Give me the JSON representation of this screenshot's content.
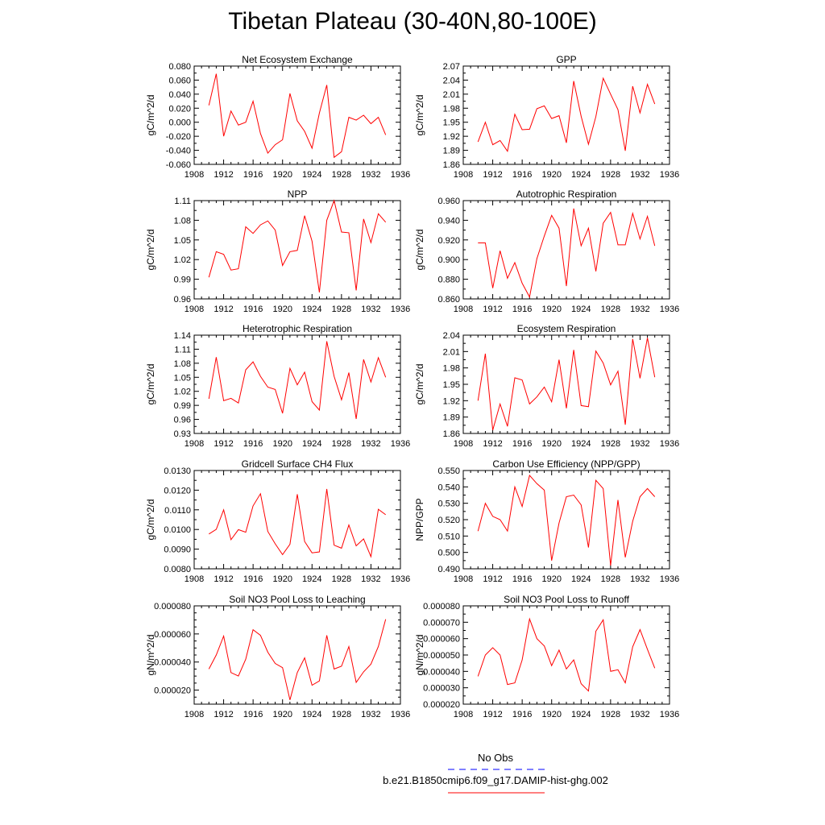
{
  "figure": {
    "title": "Tibetan Plateau (30-40N,80-100E)"
  },
  "legend": {
    "entries": [
      {
        "label": "No Obs",
        "color": "#0000ff",
        "dash": "dashed"
      },
      {
        "label": "b.e21.B1850cmip6.f09_g17.DAMIP-hist-ghg.002",
        "color": "#ff0000",
        "dash": "solid"
      }
    ]
  },
  "chart_data": [
    {
      "type": "line",
      "title": "Net Ecosystem Exchange",
      "ylabel": "gC/m^2/d",
      "xlim": [
        1908,
        1936
      ],
      "xticks": [
        1908,
        1912,
        1916,
        1920,
        1924,
        1928,
        1932,
        1936
      ],
      "ylim": [
        -0.06,
        0.08
      ],
      "yticks": [
        "-0.060",
        "-0.040",
        "-0.020",
        "0.000",
        "0.020",
        "0.040",
        "0.060",
        "0.080"
      ],
      "x": [
        1910,
        1911,
        1912,
        1913,
        1914,
        1915,
        1916,
        1917,
        1918,
        1919,
        1920,
        1921,
        1922,
        1923,
        1924,
        1925,
        1926,
        1927,
        1928,
        1929,
        1930,
        1931,
        1932,
        1933,
        1934
      ],
      "series": [
        {
          "color": "#ff0000",
          "values": [
            0.024,
            0.069,
            -0.02,
            0.016,
            -0.004,
            0.0,
            0.03,
            -0.016,
            -0.044,
            -0.032,
            -0.025,
            0.041,
            0.002,
            -0.013,
            -0.037,
            0.013,
            0.053,
            -0.05,
            -0.042,
            0.007,
            0.003,
            0.01,
            -0.002,
            0.007,
            -0.018
          ]
        }
      ]
    },
    {
      "type": "line",
      "title": "GPP",
      "ylabel": "gC/m^2/d",
      "xlim": [
        1908,
        1936
      ],
      "xticks": [
        1908,
        1912,
        1916,
        1920,
        1924,
        1928,
        1932,
        1936
      ],
      "ylim": [
        1.86,
        2.07
      ],
      "yticks": [
        "1.86",
        "1.89",
        "1.92",
        "1.95",
        "1.98",
        "2.01",
        "2.04",
        "2.07"
      ],
      "x": [
        1910,
        1911,
        1912,
        1913,
        1914,
        1915,
        1916,
        1917,
        1918,
        1919,
        1920,
        1921,
        1922,
        1923,
        1924,
        1925,
        1926,
        1927,
        1928,
        1929,
        1930,
        1931,
        1932,
        1933,
        1934
      ],
      "series": [
        {
          "color": "#ff0000",
          "values": [
            1.908,
            1.95,
            1.902,
            1.911,
            1.888,
            1.967,
            1.934,
            1.935,
            1.979,
            1.985,
            1.958,
            1.964,
            1.906,
            2.038,
            1.963,
            1.903,
            1.962,
            2.044,
            2.01,
            1.977,
            1.889,
            2.027,
            1.97,
            2.031,
            1.989
          ]
        }
      ]
    },
    {
      "type": "line",
      "title": "NPP",
      "ylabel": "gC/m^2/d",
      "xlim": [
        1908,
        1936
      ],
      "xticks": [
        1908,
        1912,
        1916,
        1920,
        1924,
        1928,
        1932,
        1936
      ],
      "ylim": [
        0.96,
        1.11
      ],
      "yticks": [
        "0.96",
        "0.99",
        "1.02",
        "1.05",
        "1.08",
        "1.11"
      ],
      "x": [
        1910,
        1911,
        1912,
        1913,
        1914,
        1915,
        1916,
        1917,
        1918,
        1919,
        1920,
        1921,
        1922,
        1923,
        1924,
        1925,
        1926,
        1927,
        1928,
        1929,
        1930,
        1931,
        1932,
        1933,
        1934
      ],
      "series": [
        {
          "color": "#ff0000",
          "values": [
            0.993,
            1.032,
            1.028,
            1.004,
            1.006,
            1.07,
            1.06,
            1.073,
            1.079,
            1.065,
            1.011,
            1.032,
            1.034,
            1.087,
            1.048,
            0.97,
            1.08,
            1.11,
            1.062,
            1.061,
            0.973,
            1.082,
            1.046,
            1.09,
            1.077
          ]
        }
      ]
    },
    {
      "type": "line",
      "title": "Autotrophic Respiration",
      "ylabel": "gC/m^2/d",
      "xlim": [
        1908,
        1936
      ],
      "xticks": [
        1908,
        1912,
        1916,
        1920,
        1924,
        1928,
        1932,
        1936
      ],
      "ylim": [
        0.86,
        0.96
      ],
      "yticks": [
        "0.860",
        "0.880",
        "0.900",
        "0.920",
        "0.940",
        "0.960"
      ],
      "x": [
        1910,
        1911,
        1912,
        1913,
        1914,
        1915,
        1916,
        1917,
        1918,
        1919,
        1920,
        1921,
        1922,
        1923,
        1924,
        1925,
        1926,
        1927,
        1928,
        1929,
        1930,
        1931,
        1932,
        1933,
        1934
      ],
      "series": [
        {
          "color": "#ff0000",
          "values": [
            0.917,
            0.917,
            0.871,
            0.909,
            0.881,
            0.897,
            0.876,
            0.862,
            0.901,
            0.924,
            0.945,
            0.932,
            0.873,
            0.952,
            0.914,
            0.932,
            0.888,
            0.937,
            0.948,
            0.915,
            0.915,
            0.947,
            0.921,
            0.944,
            0.914
          ]
        }
      ]
    },
    {
      "type": "line",
      "title": "Heterotrophic Respiration",
      "ylabel": "gC/m^2/d",
      "xlim": [
        1908,
        1936
      ],
      "xticks": [
        1908,
        1912,
        1916,
        1920,
        1924,
        1928,
        1932,
        1936
      ],
      "ylim": [
        0.93,
        1.14
      ],
      "yticks": [
        "0.93",
        "0.96",
        "0.99",
        "1.02",
        "1.05",
        "1.08",
        "1.11",
        "1.14"
      ],
      "x": [
        1910,
        1911,
        1912,
        1913,
        1914,
        1915,
        1916,
        1917,
        1918,
        1919,
        1920,
        1921,
        1922,
        1923,
        1924,
        1925,
        1926,
        1927,
        1928,
        1929,
        1930,
        1931,
        1932,
        1933,
        1934
      ],
      "series": [
        {
          "color": "#ff0000",
          "values": [
            1.004,
            1.093,
            1.0,
            1.005,
            0.995,
            1.066,
            1.083,
            1.052,
            1.029,
            1.024,
            0.973,
            1.069,
            1.034,
            1.061,
            0.998,
            0.98,
            1.127,
            1.052,
            1.002,
            1.06,
            0.961,
            1.088,
            1.04,
            1.092,
            1.05
          ]
        }
      ]
    },
    {
      "type": "line",
      "title": "Ecosystem Respiration",
      "ylabel": "gC/m^2/d",
      "xlim": [
        1908,
        1936
      ],
      "xticks": [
        1908,
        1912,
        1916,
        1920,
        1924,
        1928,
        1932,
        1936
      ],
      "ylim": [
        1.86,
        2.04
      ],
      "yticks": [
        "1.86",
        "1.89",
        "1.92",
        "1.95",
        "1.98",
        "2.01",
        "2.04"
      ],
      "x": [
        1910,
        1911,
        1912,
        1913,
        1914,
        1915,
        1916,
        1917,
        1918,
        1919,
        1920,
        1921,
        1922,
        1923,
        1924,
        1925,
        1926,
        1927,
        1928,
        1929,
        1930,
        1931,
        1932,
        1933,
        1934
      ],
      "series": [
        {
          "color": "#ff0000",
          "values": [
            1.92,
            2.006,
            1.866,
            1.914,
            1.873,
            1.962,
            1.958,
            1.914,
            1.927,
            1.945,
            1.918,
            1.995,
            1.906,
            2.013,
            1.911,
            1.909,
            2.011,
            1.989,
            1.949,
            1.974,
            1.876,
            2.033,
            1.961,
            2.035,
            1.963
          ]
        }
      ]
    },
    {
      "type": "line",
      "title": "Gridcell Surface CH4 Flux",
      "ylabel": "gC/m^2/d",
      "xlim": [
        1908,
        1936
      ],
      "xticks": [
        1908,
        1912,
        1916,
        1920,
        1924,
        1928,
        1932,
        1936
      ],
      "ylim": [
        0.008,
        0.013
      ],
      "yticks": [
        "0.0080",
        "0.0090",
        "0.0100",
        "0.0110",
        "0.0120",
        "0.0130"
      ],
      "x": [
        1910,
        1911,
        1912,
        1913,
        1914,
        1915,
        1916,
        1917,
        1918,
        1919,
        1920,
        1921,
        1922,
        1923,
        1924,
        1925,
        1926,
        1927,
        1928,
        1929,
        1930,
        1931,
        1932,
        1933,
        1934
      ],
      "series": [
        {
          "color": "#ff0000",
          "values": [
            0.00977,
            0.01001,
            0.011,
            0.00948,
            0.00999,
            0.00986,
            0.0112,
            0.01182,
            0.0099,
            0.00927,
            0.00872,
            0.00925,
            0.01179,
            0.00939,
            0.00881,
            0.00886,
            0.01206,
            0.0092,
            0.00905,
            0.01023,
            0.00917,
            0.00952,
            0.00862,
            0.01103,
            0.01075
          ]
        }
      ]
    },
    {
      "type": "line",
      "title": "Carbon Use Efficiency (NPP/GPP)",
      "ylabel": "NPP/GPP",
      "xlim": [
        1908,
        1936
      ],
      "xticks": [
        1908,
        1912,
        1916,
        1920,
        1924,
        1928,
        1932,
        1936
      ],
      "ylim": [
        0.49,
        0.55
      ],
      "yticks": [
        "0.490",
        "0.500",
        "0.510",
        "0.520",
        "0.530",
        "0.540",
        "0.550"
      ],
      "x": [
        1910,
        1911,
        1912,
        1913,
        1914,
        1915,
        1916,
        1917,
        1918,
        1919,
        1920,
        1921,
        1922,
        1923,
        1924,
        1925,
        1926,
        1927,
        1928,
        1929,
        1930,
        1931,
        1932,
        1933,
        1934
      ],
      "series": [
        {
          "color": "#ff0000",
          "values": [
            0.513,
            0.53,
            0.522,
            0.52,
            0.513,
            0.54,
            0.528,
            0.547,
            0.542,
            0.538,
            0.495,
            0.518,
            0.534,
            0.535,
            0.529,
            0.503,
            0.544,
            0.539,
            0.492,
            0.532,
            0.497,
            0.519,
            0.534,
            0.539,
            0.534
          ]
        }
      ]
    },
    {
      "type": "line",
      "title": "Soil NO3 Pool Loss to Leaching",
      "ylabel": "gN/m^2/d",
      "xlim": [
        1908,
        1936
      ],
      "xticks": [
        1908,
        1912,
        1916,
        1920,
        1924,
        1928,
        1932,
        1936
      ],
      "ylim": [
        1e-05,
        8e-05
      ],
      "yticks": [
        "",
        "0.000020",
        "",
        "0.000040",
        "",
        "0.000060",
        "",
        "0.000080"
      ],
      "x": [
        1910,
        1911,
        1912,
        1913,
        1914,
        1915,
        1916,
        1917,
        1918,
        1919,
        1920,
        1921,
        1922,
        1923,
        1924,
        1925,
        1926,
        1927,
        1928,
        1929,
        1930,
        1931,
        1932,
        1933,
        1934
      ],
      "series": [
        {
          "color": "#ff0000",
          "values": [
            3.5e-05,
            4.5e-05,
            5.85e-05,
            3.25e-05,
            3e-05,
            4.2e-05,
            6.3e-05,
            5.9e-05,
            4.7e-05,
            3.9e-05,
            3.6e-05,
            1.3e-05,
            3.25e-05,
            4.3e-05,
            2.35e-05,
            2.65e-05,
            5.9e-05,
            3.5e-05,
            3.7e-05,
            5.1e-05,
            2.55e-05,
            3.3e-05,
            3.85e-05,
            5.1e-05,
            7.05e-05
          ]
        }
      ]
    },
    {
      "type": "line",
      "title": "Soil NO3 Pool Loss to Runoff",
      "ylabel": "gN/m^2/d",
      "xlim": [
        1908,
        1936
      ],
      "xticks": [
        1908,
        1912,
        1916,
        1920,
        1924,
        1928,
        1932,
        1936
      ],
      "ylim": [
        2e-05,
        8e-05
      ],
      "yticks": [
        "0.000020",
        "0.000030",
        "0.000040",
        "0.000050",
        "0.000060",
        "0.000070",
        "0.000080"
      ],
      "x": [
        1910,
        1911,
        1912,
        1913,
        1914,
        1915,
        1916,
        1917,
        1918,
        1919,
        1920,
        1921,
        1922,
        1923,
        1924,
        1925,
        1926,
        1927,
        1928,
        1929,
        1930,
        1931,
        1932,
        1933,
        1934
      ],
      "series": [
        {
          "color": "#ff0000",
          "values": [
            3.7e-05,
            5e-05,
            5.45e-05,
            5e-05,
            3.2e-05,
            3.3e-05,
            4.7e-05,
            7.2e-05,
            6e-05,
            5.55e-05,
            4.35e-05,
            5.3e-05,
            4.15e-05,
            4.7e-05,
            3.25e-05,
            2.8e-05,
            6.45e-05,
            7.15e-05,
            4e-05,
            4.1e-05,
            3.3e-05,
            5.5e-05,
            6.55e-05,
            5.35e-05,
            4.2e-05
          ]
        }
      ]
    }
  ]
}
